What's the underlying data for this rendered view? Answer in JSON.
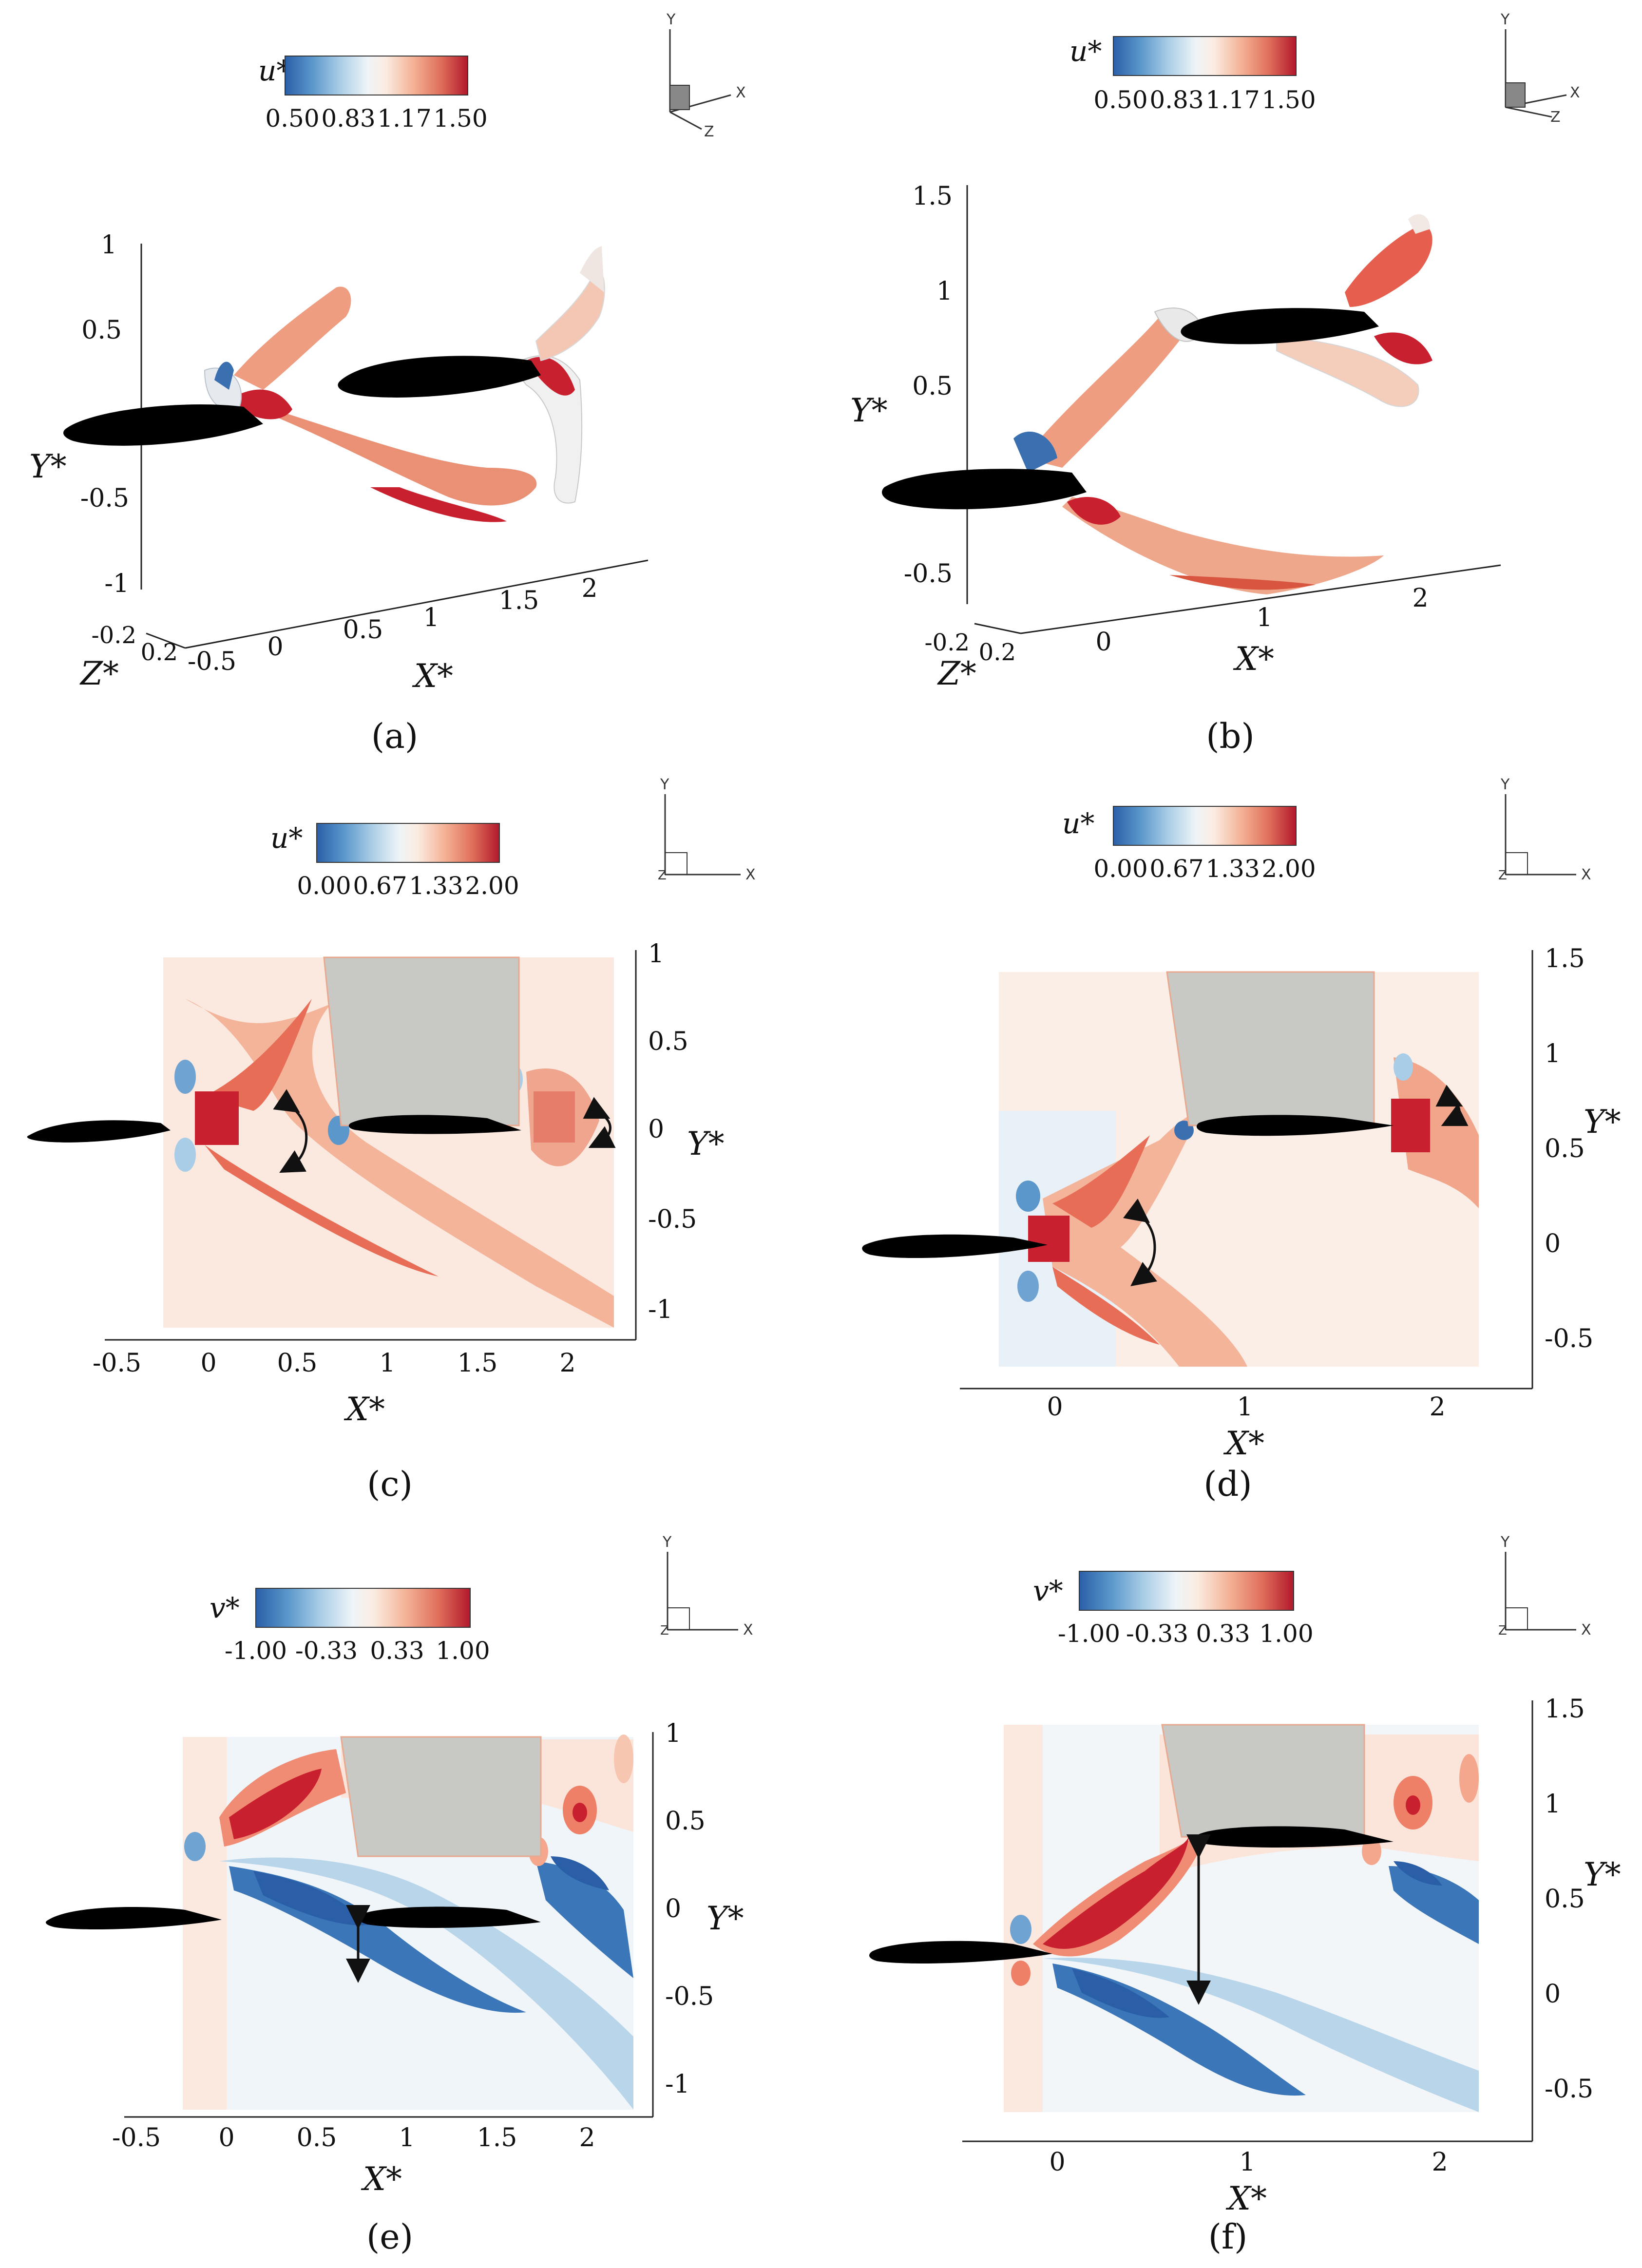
{
  "panels": [
    {
      "id": "a",
      "caption": "(a)",
      "cbar_var": "u*",
      "cbar_ticks": [
        "0.50",
        "0.83",
        "1.17",
        "1.50"
      ],
      "x_ticks": [
        "-0.5",
        "0",
        "0.5",
        "1",
        "1.5",
        "2"
      ],
      "y_ticks": [
        "1",
        "0.5",
        "-0.5",
        "-1"
      ],
      "z_ticks": [
        "-0.2",
        "0.2"
      ],
      "xlabel": "X*",
      "ylabel": "Y*",
      "zlabel": "Z*"
    },
    {
      "id": "b",
      "caption": "(b)",
      "cbar_var": "u*",
      "cbar_ticks": [
        "0.50",
        "0.83",
        "1.17",
        "1.50"
      ],
      "x_ticks": [
        "0",
        "1",
        "2"
      ],
      "y_ticks": [
        "1.5",
        "1",
        "0.5",
        "-0.5"
      ],
      "z_ticks": [
        "-0.2",
        "0.2"
      ],
      "xlabel": "X*",
      "ylabel": "Y*",
      "zlabel": "Z*"
    },
    {
      "id": "c",
      "caption": "(c)",
      "cbar_var": "u*",
      "cbar_ticks": [
        "0.00",
        "0.67",
        "1.33",
        "2.00"
      ],
      "x_ticks": [
        "-0.5",
        "0",
        "0.5",
        "1",
        "1.5",
        "2"
      ],
      "y_ticks": [
        "1",
        "0.5",
        "0",
        "-0.5",
        "-1"
      ],
      "xlabel": "X*",
      "ylabel": "Y*"
    },
    {
      "id": "d",
      "caption": "(d)",
      "cbar_var": "u*",
      "cbar_ticks": [
        "0.00",
        "0.67",
        "1.33",
        "2.00"
      ],
      "x_ticks": [
        "0",
        "1",
        "2"
      ],
      "y_ticks": [
        "1.5",
        "1",
        "0.5",
        "0",
        "-0.5"
      ],
      "xlabel": "X*",
      "ylabel": "Y*"
    },
    {
      "id": "e",
      "caption": "(e)",
      "cbar_var": "v*",
      "cbar_ticks": [
        "-1.00",
        "-0.33",
        "0.33",
        "1.00"
      ],
      "x_ticks": [
        "-0.5",
        "0",
        "0.5",
        "1",
        "1.5",
        "2"
      ],
      "y_ticks": [
        "1",
        "0.5",
        "0",
        "-0.5",
        "-1"
      ],
      "xlabel": "X*",
      "ylabel": "Y*"
    },
    {
      "id": "f",
      "caption": "(f)",
      "cbar_var": "v*",
      "cbar_ticks": [
        "-1.00",
        "-0.33",
        "0.33",
        "1.00"
      ],
      "x_ticks": [
        "0",
        "1",
        "2"
      ],
      "y_ticks": [
        "1.5",
        "1",
        "0.5",
        "0",
        "-0.5"
      ],
      "xlabel": "X*",
      "ylabel": "Y*"
    }
  ],
  "axis_triad": {
    "x": "X",
    "y": "Y",
    "z": "Z"
  },
  "colors": {
    "blue": "#2166ac",
    "red": "#b2182b",
    "neutral": "#f7f7f7",
    "gray_region": "#c8c8c4",
    "foil": "#000000"
  }
}
